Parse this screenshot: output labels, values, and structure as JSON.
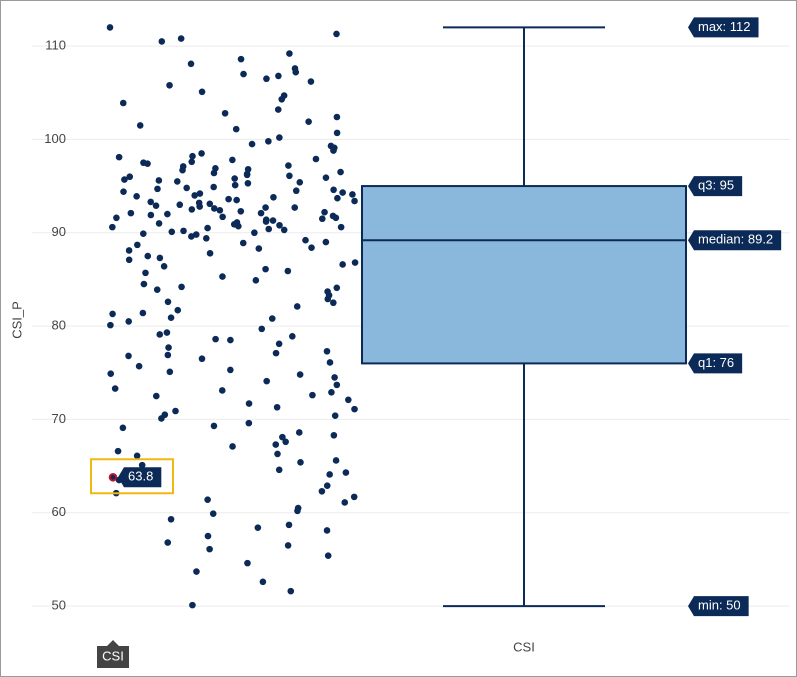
{
  "chart_data": {
    "type": "box",
    "y_axis_title": "CSI_P",
    "ylim": [
      46.9,
      114.4
    ],
    "yticks": [
      50,
      60,
      70,
      80,
      90,
      100,
      110
    ],
    "grid": true,
    "series": [
      {
        "name": "CSI",
        "color": "#0b2a57",
        "box_fill": "#8ab8dc",
        "min": 50,
        "q1": 76,
        "median": 89.2,
        "q3": 95,
        "max": 112,
        "stat_labels": {
          "max": "max: 112",
          "q3": "q3: 95",
          "median": "median: 89.2",
          "q1": "q1: 76",
          "min": "min: 50"
        },
        "highlight_index": 0,
        "points": [
          63.8,
          112,
          111.3,
          110.8,
          110.5,
          109.2,
          108.6,
          108.1,
          107.6,
          107.2,
          107,
          106.8,
          106.5,
          106.2,
          105.8,
          105.1,
          104.7,
          104.3,
          103.9,
          103.2,
          102.8,
          102.4,
          101.9,
          101.5,
          101.1,
          100.7,
          100.2,
          99.8,
          99.5,
          99.1,
          98.8,
          98.5,
          98.2,
          97.9,
          97.6,
          97.4,
          97.1,
          96.9,
          96.7,
          96.5,
          96.3,
          96.1,
          95.9,
          95.7,
          95.5,
          95.3,
          95.1,
          94.9,
          94.7,
          94.6,
          94.4,
          94.2,
          94,
          93.8,
          93.7,
          93.5,
          93.3,
          93.1,
          93,
          92.8,
          92.6,
          92.5,
          92.3,
          92.1,
          92,
          91.8,
          91.7,
          91.5,
          91.4,
          91.2,
          91.1,
          90.9,
          90.8,
          90.6,
          90.5,
          90.3,
          90.1,
          90,
          89.8,
          89.6,
          89.4,
          89.2,
          89,
          88.7,
          88.4,
          88.1,
          87.8,
          87.5,
          87.1,
          86.8,
          86.4,
          86.1,
          85.7,
          85.3,
          84.9,
          84.5,
          84.1,
          83.7,
          83.3,
          82.9,
          82.5,
          82.1,
          81.7,
          81.3,
          80.9,
          80.5,
          80.1,
          79.7,
          79.3,
          78.9,
          78.5,
          78.1,
          77.7,
          77.3,
          76.9,
          76.5,
          76.1,
          75.7,
          75.3,
          74.9,
          74.5,
          74.1,
          73.7,
          73.3,
          72.9,
          72.5,
          72.1,
          71.7,
          71.3,
          70.9,
          70.5,
          70.1,
          69.6,
          69.1,
          68.6,
          68.1,
          67.6,
          67.1,
          66.6,
          66.1,
          65.6,
          65.1,
          64.6,
          64.1,
          63.5,
          62.9,
          62.3,
          61.7,
          61.1,
          60.5,
          59.9,
          59.3,
          58.7,
          58.1,
          57.5,
          56.8,
          56.1,
          55.4,
          54.6,
          53.7,
          52.6,
          51.6,
          50.1,
          97.2,
          96.4,
          95.6,
          94.8,
          94.1,
          93.4,
          92.7,
          92.2,
          91.6,
          91,
          90.4,
          89.9,
          97.8,
          96.2,
          95.4,
          94.3,
          93.6,
          92.9,
          92.4,
          91.9,
          91.3,
          90.7,
          96.8,
          95.8,
          94.5,
          93.2,
          92.7,
          91.6,
          90.2,
          88.9,
          87.3,
          85.9,
          84.2,
          82.6,
          80.8,
          78.6,
          76.8,
          74.8,
          72.6,
          70.4,
          68.3,
          66.3,
          64.3,
          62.1,
          60.2,
          58.4,
          56.5,
          99.3,
          98.1,
          97.5,
          96,
          93.9,
          92.1,
          90.6,
          88.3,
          86.6,
          83.9,
          81.4,
          79.1,
          77.1,
          75.1,
          73.1,
          71.1,
          69.3,
          67.3,
          65.4,
          61.4
        ]
      }
    ]
  }
}
